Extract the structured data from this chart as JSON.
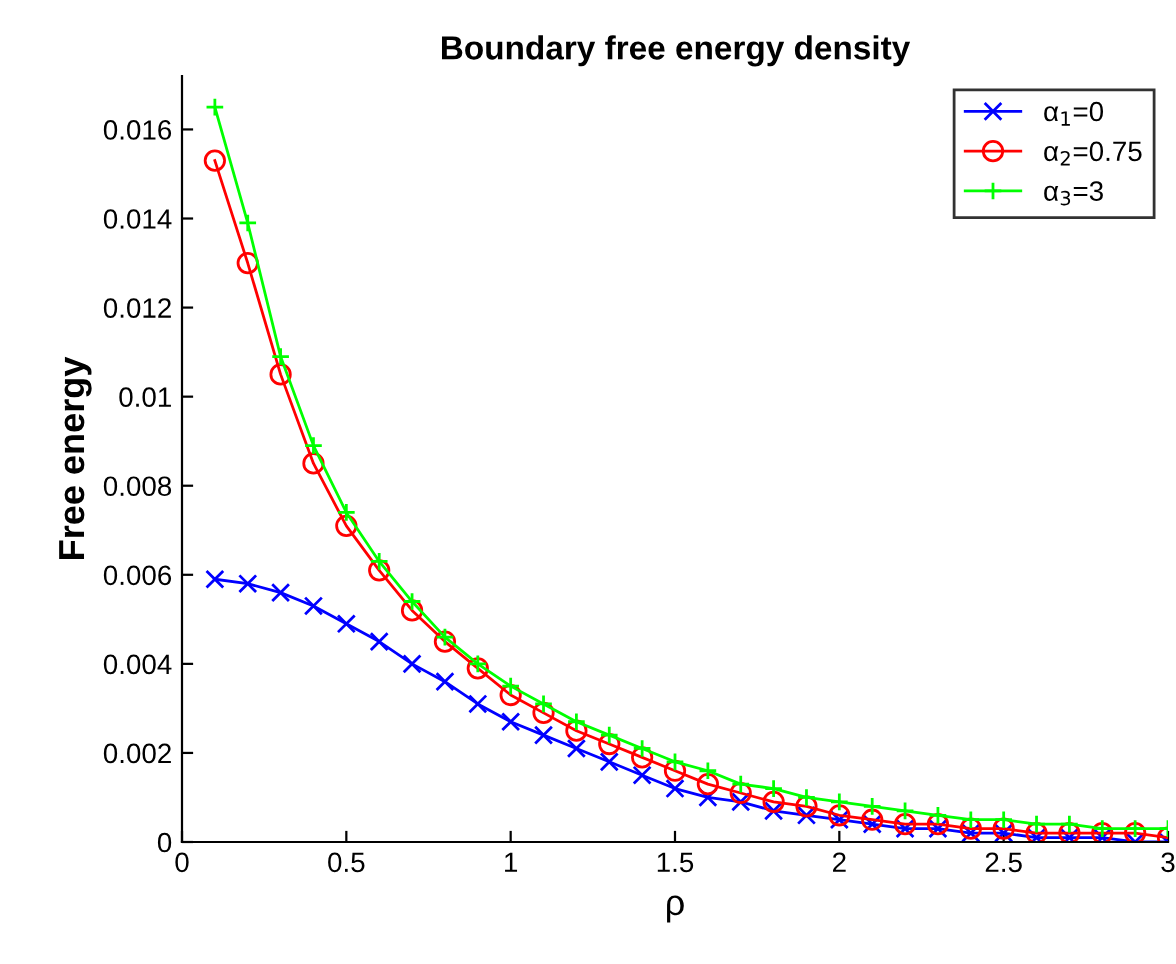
{
  "chart_data": {
    "type": "line",
    "title": "Boundary free energy density",
    "xlabel": "ρ",
    "ylabel": "Free energy",
    "x": [
      0.1,
      0.2,
      0.3,
      0.4,
      0.5,
      0.6,
      0.7,
      0.8,
      0.9,
      1.0,
      1.1,
      1.2,
      1.3,
      1.4,
      1.5,
      1.6,
      1.7,
      1.8,
      1.9,
      2.0,
      2.1,
      2.2,
      2.3,
      2.4,
      2.5,
      2.6,
      2.7,
      2.8,
      2.9,
      3.0
    ],
    "series": [
      {
        "name": "α$_{1}$=0",
        "color": "#0000ff",
        "marker": "cross",
        "values": [
          0.0059,
          0.0058,
          0.0056,
          0.0053,
          0.0049,
          0.0045,
          0.004,
          0.0036,
          0.0031,
          0.0027,
          0.0024,
          0.0021,
          0.0018,
          0.0015,
          0.0012,
          0.001,
          0.0009,
          0.0007,
          0.0006,
          0.0005,
          0.0004,
          0.0003,
          0.0003,
          0.0002,
          0.0002,
          0.0001,
          0.0001,
          0.0001,
          0.0,
          0.0
        ]
      },
      {
        "name": "α$_{2}$=0.75",
        "color": "#ff0000",
        "marker": "circle",
        "values": [
          0.0153,
          0.013,
          0.0105,
          0.0085,
          0.0071,
          0.0061,
          0.0052,
          0.0045,
          0.0039,
          0.0033,
          0.0029,
          0.0025,
          0.0022,
          0.0019,
          0.0016,
          0.0013,
          0.0011,
          0.0009,
          0.0008,
          0.0006,
          0.0005,
          0.0004,
          0.0004,
          0.0003,
          0.0003,
          0.0002,
          0.0002,
          0.0002,
          0.0002,
          0.0001
        ]
      },
      {
        "name": "α$_{3}$=3",
        "color": "#00ff00",
        "marker": "plus",
        "values": [
          0.0165,
          0.0139,
          0.0109,
          0.0089,
          0.0074,
          0.0063,
          0.0054,
          0.0046,
          0.004,
          0.0035,
          0.0031,
          0.0027,
          0.0024,
          0.0021,
          0.0018,
          0.0016,
          0.0013,
          0.0012,
          0.001,
          0.0009,
          0.0008,
          0.0007,
          0.0006,
          0.0005,
          0.0005,
          0.0004,
          0.0004,
          0.0003,
          0.0003,
          0.0003
        ]
      }
    ],
    "xlim": [
      0,
      3
    ],
    "ylim": [
      0,
      0.0172
    ],
    "xticks": [
      0,
      0.5,
      1,
      1.5,
      2,
      2.5,
      3
    ],
    "yticks": [
      0,
      0.002,
      0.004,
      0.006,
      0.008,
      0.01,
      0.012,
      0.014,
      0.016
    ],
    "grid": false,
    "legend": "top right",
    "line_style": "solid"
  }
}
